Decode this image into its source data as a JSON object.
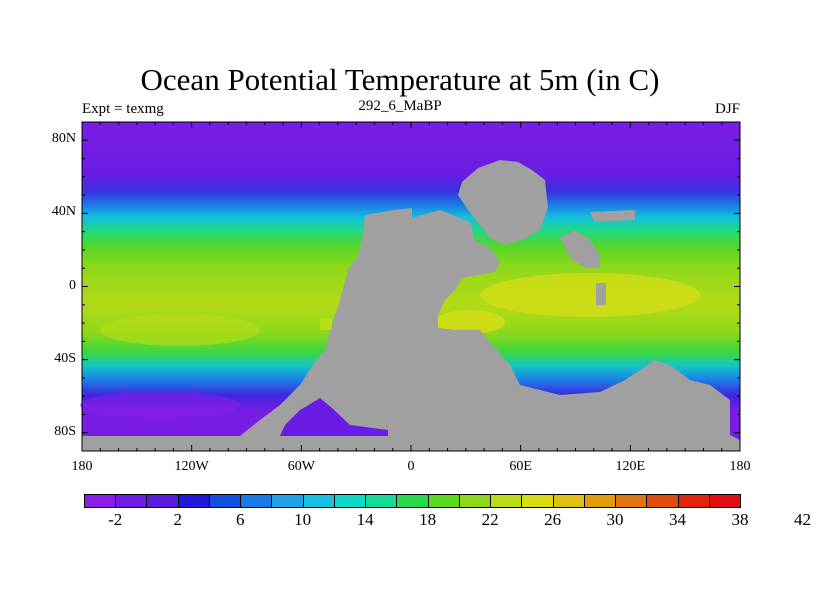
{
  "title": "Ocean Potential Temperature at 5m (in C)",
  "subtitle_left": "Expt = texmg",
  "subtitle_center": "292_6_MaBP",
  "subtitle_right": "DJF",
  "lat_labels": [
    "80N",
    "40N",
    "0",
    "40S",
    "80S"
  ],
  "lat_values": [
    80,
    40,
    0,
    -40,
    -80
  ],
  "lon_labels": [
    "180",
    "120W",
    "60W",
    "0",
    "60E",
    "120E",
    "180"
  ],
  "lon_values": [
    -180,
    -120,
    -60,
    0,
    60,
    120,
    180
  ],
  "colorbar": {
    "labels": [
      "-2",
      "2",
      "6",
      "10",
      "14",
      "18",
      "22",
      "26",
      "30",
      "34",
      "38",
      "42"
    ],
    "colors": [
      "#8a1de8",
      "#6f1de6",
      "#5a1ae0",
      "#2018d8",
      "#1250e0",
      "#1c7ae6",
      "#20a0e8",
      "#18c0e4",
      "#10d8c8",
      "#14dc98",
      "#28d84c",
      "#5cd81e",
      "#8ed81a",
      "#b8dc16",
      "#d8dc14",
      "#e0c010",
      "#e09c0c",
      "#e07410",
      "#e04c10",
      "#e02410",
      "#e01010"
    ]
  },
  "colors": {
    "land": "#a0a0a0",
    "frame": "#000000"
  }
}
